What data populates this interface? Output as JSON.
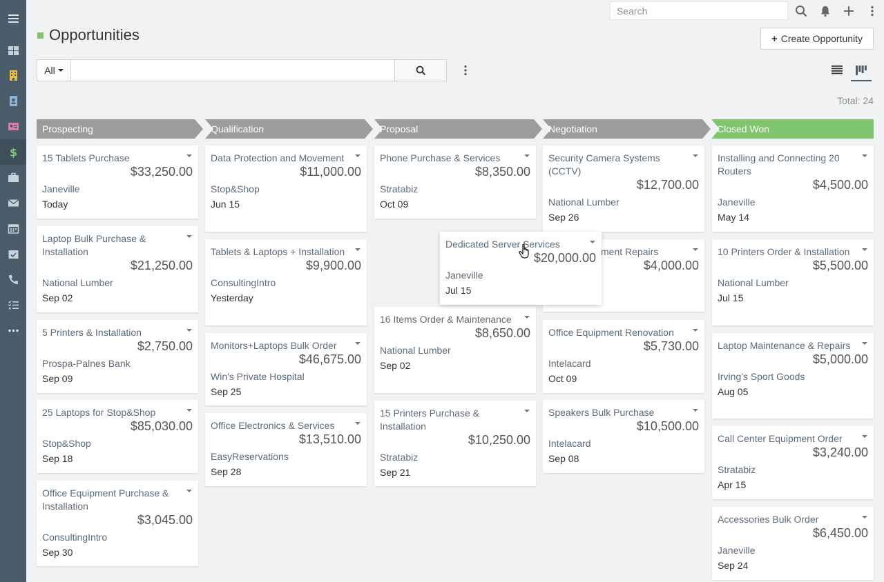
{
  "sidebar": {
    "items": [
      {
        "icon": "hamburger-menu-icon"
      },
      {
        "icon": "dashboard-icon"
      },
      {
        "icon": "building-icon"
      },
      {
        "icon": "contact-icon"
      },
      {
        "icon": "id-card-icon"
      },
      {
        "icon": "dollar-icon",
        "active": true
      },
      {
        "icon": "briefcase-icon"
      },
      {
        "icon": "envelope-icon"
      },
      {
        "icon": "calendar-icon"
      },
      {
        "icon": "calendar-check-icon"
      },
      {
        "icon": "phone-icon"
      },
      {
        "icon": "task-list-icon"
      },
      {
        "icon": "more-icon"
      }
    ]
  },
  "topbar": {
    "search_placeholder": "Search"
  },
  "page": {
    "title": "Opportunities",
    "create_label": "Create Opportunity",
    "filter_all": "All",
    "total": "Total: 24"
  },
  "colors": {
    "stage": "#9a9c9d",
    "stage_won": "#7fc56e",
    "title_square": "#7fc56e",
    "sidebar": "#4a5b69"
  },
  "stages": [
    {
      "label": "Prospecting"
    },
    {
      "label": "Qualification"
    },
    {
      "label": "Proposal"
    },
    {
      "label": "Negotiation"
    },
    {
      "label": "Closed Won"
    }
  ],
  "columns": [
    {
      "cards": [
        {
          "name": "15 Tablets Purchase",
          "amount": "$33,250.00",
          "account": "Janeville",
          "date": "Today"
        },
        {
          "name": "Laptop Bulk Purchase & Installation",
          "amount": "$21,250.00",
          "account": "National Lumber",
          "date": "Sep 02"
        },
        {
          "name": "5 Printers & Installation",
          "amount": "$2,750.00",
          "account": "Prospa-Palnes Bank",
          "date": "Sep 09"
        },
        {
          "name": "25 Laptops for Stop&Shop",
          "amount": "$85,030.00",
          "account": "Stop&Shop",
          "date": "Sep 18"
        },
        {
          "name": "Office Equipment Purchase & Installation",
          "amount": "$3,045.00",
          "account": "ConsultingIntro",
          "date": "Sep 30"
        }
      ]
    },
    {
      "cards": [
        {
          "name": "Data Protection and Movement",
          "amount": "$11,000.00",
          "account": "Stop&Shop",
          "date": "Jun 15"
        },
        {
          "name": "Tablets & Laptops + Installation",
          "amount": "$9,900.00",
          "account": "ConsultingIntro",
          "date": "Yesterday"
        },
        {
          "name": "Monitors+Laptops Bulk Order",
          "amount": "$46,675.00",
          "account": "Win's Private Hospital",
          "date": "Sep 25"
        },
        {
          "name": "Office Electronics & Services",
          "amount": "$13,510.00",
          "account": "EasyReservations",
          "date": "Sep 28"
        }
      ]
    },
    {
      "cards": [
        {
          "name": "Phone Purchase & Services",
          "amount": "$8,350.00",
          "account": "Stratabiz",
          "date": "Oct 09"
        },
        {
          "name": "16 Items Order & Maintenance",
          "amount": "$8,650.00",
          "account": "National Lumber",
          "date": "Sep 02"
        },
        {
          "name": "15 Printers Purchase & Installation",
          "amount": "$10,250.00",
          "account": "Stratabiz",
          "date": "Sep 21"
        }
      ]
    },
    {
      "cards": [
        {
          "name": "Security Camera Systems (CCTV)",
          "amount": "$12,700.00",
          "account": "National Lumber",
          "date": "Sep 26"
        },
        {
          "name": "Office Equipment Repairs",
          "amount": "$4,000.00",
          "account": "",
          "date": ""
        },
        {
          "name": "Office Equipment Renovation",
          "amount": "$5,730.00",
          "account": "Intelacard",
          "date": "Oct 09"
        },
        {
          "name": "Speakers Bulk Purchase",
          "amount": "$10,500.00",
          "account": "Intelacard",
          "date": "Sep 08"
        }
      ]
    },
    {
      "cards": [
        {
          "name": "Installing and Connecting 20 Routers",
          "amount": "$4,500.00",
          "account": "Janeville",
          "date": "May 14"
        },
        {
          "name": "10 Printers Order & Installation",
          "amount": "$5,500.00",
          "account": "National Lumber",
          "date": "Jul 15"
        },
        {
          "name": "Laptop Maintenance & Repairs",
          "amount": "$5,000.00",
          "account": "Irving's Sport Goods",
          "date": "Aug 05"
        },
        {
          "name": "Call Center Equipment Order",
          "amount": "$3,240.00",
          "account": "Stratabiz",
          "date": "Apr 15"
        },
        {
          "name": "Accessories Bulk Order",
          "amount": "$6,450.00",
          "account": "Janeville",
          "date": "Sep 24"
        }
      ]
    }
  ],
  "dragging_card": {
    "name": "Dedicated Server Services",
    "amount": "$20,000.00",
    "account": "Janeville",
    "date": "Jul 15"
  }
}
